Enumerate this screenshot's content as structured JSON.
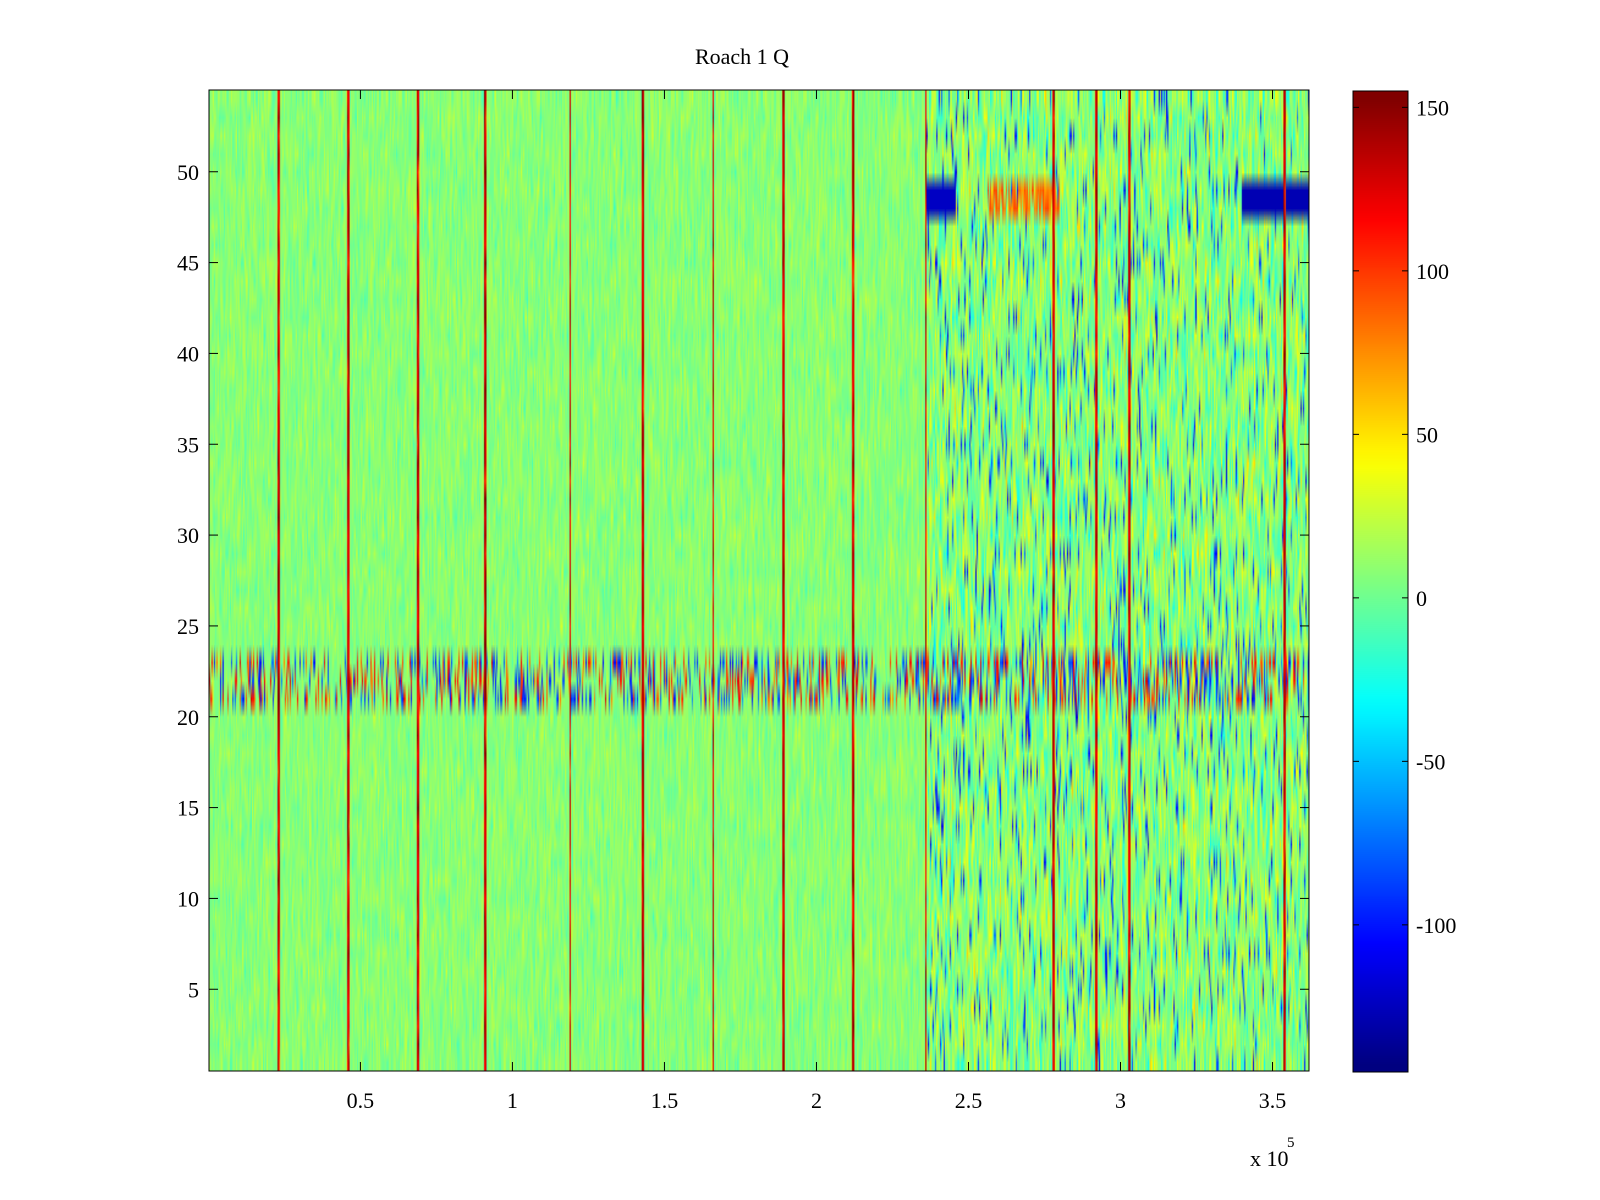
{
  "chart_data": {
    "type": "heatmap",
    "title": "Roach 1 Q",
    "xlabel": "",
    "ylabel": "",
    "x_exponent_label": "x 10",
    "x_exponent_power": "5",
    "xlim": [
      200,
      362000
    ],
    "ylim": [
      0.5,
      54.5
    ],
    "x_ticks": [
      50000,
      100000,
      150000,
      200000,
      250000,
      300000,
      350000
    ],
    "x_tick_labels": [
      "0.5",
      "1",
      "1.5",
      "2",
      "2.5",
      "3",
      "3.5"
    ],
    "y_ticks": [
      5,
      10,
      15,
      20,
      25,
      30,
      35,
      40,
      45,
      50
    ],
    "y_tick_labels": [
      "5",
      "10",
      "15",
      "20",
      "25",
      "30",
      "35",
      "40",
      "45",
      "50"
    ],
    "n_rows": 54,
    "colorbar": {
      "colormap": "jet",
      "clim": [
        -145,
        155
      ],
      "ticks": [
        150,
        100,
        50,
        0,
        -50,
        -100
      ],
      "tick_labels": [
        "150",
        "100",
        "50",
        "0",
        "-50",
        "-100"
      ]
    },
    "vertical_spike_columns": [
      23000,
      46000,
      69000,
      91000,
      119000,
      143000,
      166000,
      189000,
      212000,
      236000,
      278000,
      292000,
      303000,
      354000
    ],
    "annotations": {
      "noisy_band_rows": [
        21,
        22,
        23
      ],
      "high_variance_region_start": 236000
    },
    "grid": false
  }
}
